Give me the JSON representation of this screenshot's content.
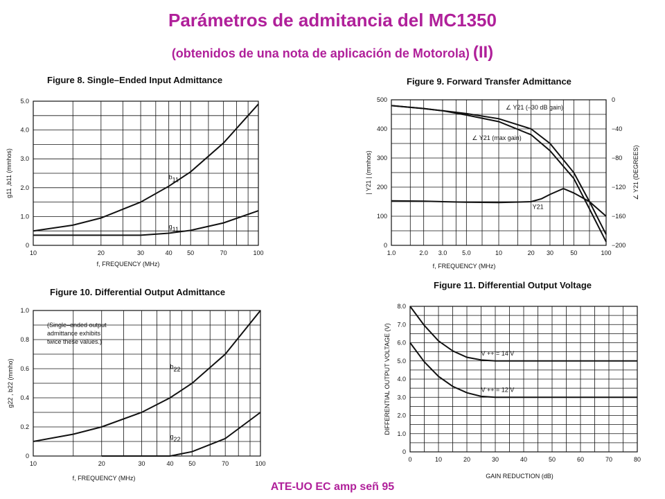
{
  "header": {
    "title": "Parámetros de admitancia  del MC1350",
    "subtitle": "(obtenidos de una nota de aplicación de Motorola) ",
    "subtitle_big": "(II)"
  },
  "footer": {
    "text": "ATE-UO EC amp señ 95"
  },
  "chart_data": [
    {
      "id": "fig8",
      "type": "line",
      "title": "Figure 8. Single–Ended Input Admittance",
      "xlabel": "f, FREQUENCY (MHz)",
      "ylabel": "g11 ,b11  (mmhos)",
      "x_scale": "log",
      "xlim": [
        10,
        100
      ],
      "ylim": [
        0,
        5.0
      ],
      "x_ticks": [
        10,
        20,
        30,
        40,
        50,
        70,
        100
      ],
      "x_tick_labels": [
        "10",
        "20",
        "30",
        "40",
        "50",
        "70",
        "100"
      ],
      "y_ticks": [
        0,
        1.0,
        2.0,
        3.0,
        4.0,
        5.0
      ],
      "y_tick_labels": [
        "0",
        "1.0",
        "2.0",
        "3.0",
        "4.0",
        "5.0"
      ],
      "grid": true,
      "series": [
        {
          "name": "b11",
          "x": [
            10,
            15,
            20,
            30,
            40,
            50,
            70,
            100
          ],
          "y": [
            0.5,
            0.7,
            0.95,
            1.5,
            2.05,
            2.55,
            3.55,
            4.9
          ]
        },
        {
          "name": "g11",
          "x": [
            10,
            20,
            30,
            40,
            50,
            70,
            100
          ],
          "y": [
            0.35,
            0.35,
            0.35,
            0.42,
            0.52,
            0.78,
            1.2
          ]
        }
      ]
    },
    {
      "id": "fig9",
      "type": "line",
      "title": "Figure 9. Forward Transfer Admittance",
      "xlabel": "f, FREQUENCY (MHz)",
      "ylabel": "| Y21 | (mmhos)",
      "y2label": "∠ Y21  (DEGREES)",
      "x_scale": "log",
      "xlim": [
        1.0,
        100
      ],
      "ylim": [
        0,
        500
      ],
      "y2lim": [
        -200,
        0
      ],
      "x_ticks": [
        1,
        2,
        3,
        5,
        10,
        20,
        30,
        50,
        100
      ],
      "x_tick_labels": [
        "1.0",
        "2.0",
        "3.0",
        "5.0",
        "10",
        "20",
        "30",
        "50",
        "100"
      ],
      "y_ticks": [
        0,
        100,
        200,
        300,
        400,
        500
      ],
      "y_tick_labels": [
        "0",
        "100",
        "200",
        "300",
        "400",
        "500"
      ],
      "y2_ticks": [
        0,
        -40,
        -80,
        -120,
        -160,
        -200
      ],
      "y2_tick_labels": [
        "0",
        "−40",
        "−80",
        "−120",
        "−160",
        "−200"
      ],
      "grid": true,
      "series": [
        {
          "name": "∠ Y21 (–30 dB gain)",
          "axis": "right",
          "x": [
            1,
            2,
            3,
            5,
            10,
            20,
            30,
            50,
            70,
            100
          ],
          "y": [
            -8,
            -12,
            -15,
            -19,
            -26,
            -40,
            -60,
            -100,
            -140,
            -185
          ]
        },
        {
          "name": "∠ Y21 (max gain)",
          "axis": "right",
          "x": [
            1,
            2,
            3,
            5,
            10,
            20,
            30,
            50,
            70,
            100
          ],
          "y": [
            -8,
            -12,
            -15,
            -21,
            -30,
            -48,
            -70,
            -108,
            -150,
            -195
          ]
        },
        {
          "name": "Y21",
          "axis": "left",
          "x": [
            1,
            2,
            3,
            5,
            10,
            20,
            25,
            30,
            40,
            50,
            70,
            100
          ],
          "y": [
            153,
            152,
            150,
            148,
            147,
            150,
            160,
            175,
            195,
            180,
            150,
            100
          ]
        }
      ],
      "annotations": [
        "∠ Y21 (–30 dB gain)",
        "∠ Y21 (max gain)",
        "Y21"
      ]
    },
    {
      "id": "fig10",
      "type": "line",
      "title": "Figure 10. Differential Output Admittance",
      "xlabel": "f, FREQUENCY (MHz)",
      "ylabel": "g22 , b22  (mmho)",
      "x_scale": "log",
      "xlim": [
        10,
        100
      ],
      "ylim": [
        0,
        1.0
      ],
      "x_ticks": [
        10,
        20,
        30,
        40,
        50,
        70,
        100
      ],
      "x_tick_labels": [
        "10",
        "20",
        "30",
        "40",
        "50",
        "70",
        "100"
      ],
      "y_ticks": [
        0,
        0.2,
        0.4,
        0.6,
        0.8,
        1.0
      ],
      "y_tick_labels": [
        "0",
        "0.2",
        "0.4",
        "0.6",
        "0.8",
        "1.0"
      ],
      "grid": true,
      "series": [
        {
          "name": "b22",
          "x": [
            10,
            15,
            20,
            30,
            40,
            50,
            70,
            100
          ],
          "y": [
            0.1,
            0.15,
            0.2,
            0.3,
            0.4,
            0.5,
            0.7,
            1.0
          ]
        },
        {
          "name": "g22",
          "x": [
            20,
            30,
            40,
            50,
            70,
            100
          ],
          "y": [
            0.0,
            0.0,
            0.0,
            0.03,
            0.12,
            0.3
          ]
        }
      ],
      "annotations": [
        "(Single–ended output",
        "admittance exhibits",
        "twice these values.)"
      ]
    },
    {
      "id": "fig11",
      "type": "line",
      "title": "Figure 11. Differential Output Voltage",
      "xlabel": "GAIN REDUCTION (dB)",
      "ylabel": "DIFFERENTIAL OUTPUT VOLTAGE (V)",
      "xlim": [
        0,
        80
      ],
      "ylim": [
        0,
        8.0
      ],
      "x_ticks": [
        0,
        10,
        20,
        30,
        40,
        50,
        60,
        70,
        80
      ],
      "x_tick_labels": [
        "0",
        "10",
        "20",
        "30",
        "40",
        "50",
        "60",
        "70",
        "80"
      ],
      "y_ticks": [
        0,
        1,
        2,
        3,
        4,
        5,
        6,
        7,
        8
      ],
      "y_tick_labels": [
        "0",
        "1.0",
        "2.0",
        "3.0",
        "4.0",
        "5.0",
        "6.0",
        "7.0",
        "8.0"
      ],
      "grid": true,
      "series": [
        {
          "name": "V ++ = 14 V",
          "x": [
            0,
            5,
            10,
            15,
            20,
            25,
            30,
            40,
            60,
            80
          ],
          "y": [
            8.0,
            6.95,
            6.1,
            5.55,
            5.2,
            5.05,
            5.0,
            5.0,
            5.0,
            5.0
          ]
        },
        {
          "name": "V ++ = 12 V",
          "x": [
            0,
            5,
            10,
            15,
            20,
            25,
            30,
            40,
            60,
            80
          ],
          "y": [
            6.0,
            4.95,
            4.15,
            3.6,
            3.25,
            3.05,
            3.0,
            3.0,
            3.0,
            3.0
          ]
        }
      ]
    }
  ]
}
